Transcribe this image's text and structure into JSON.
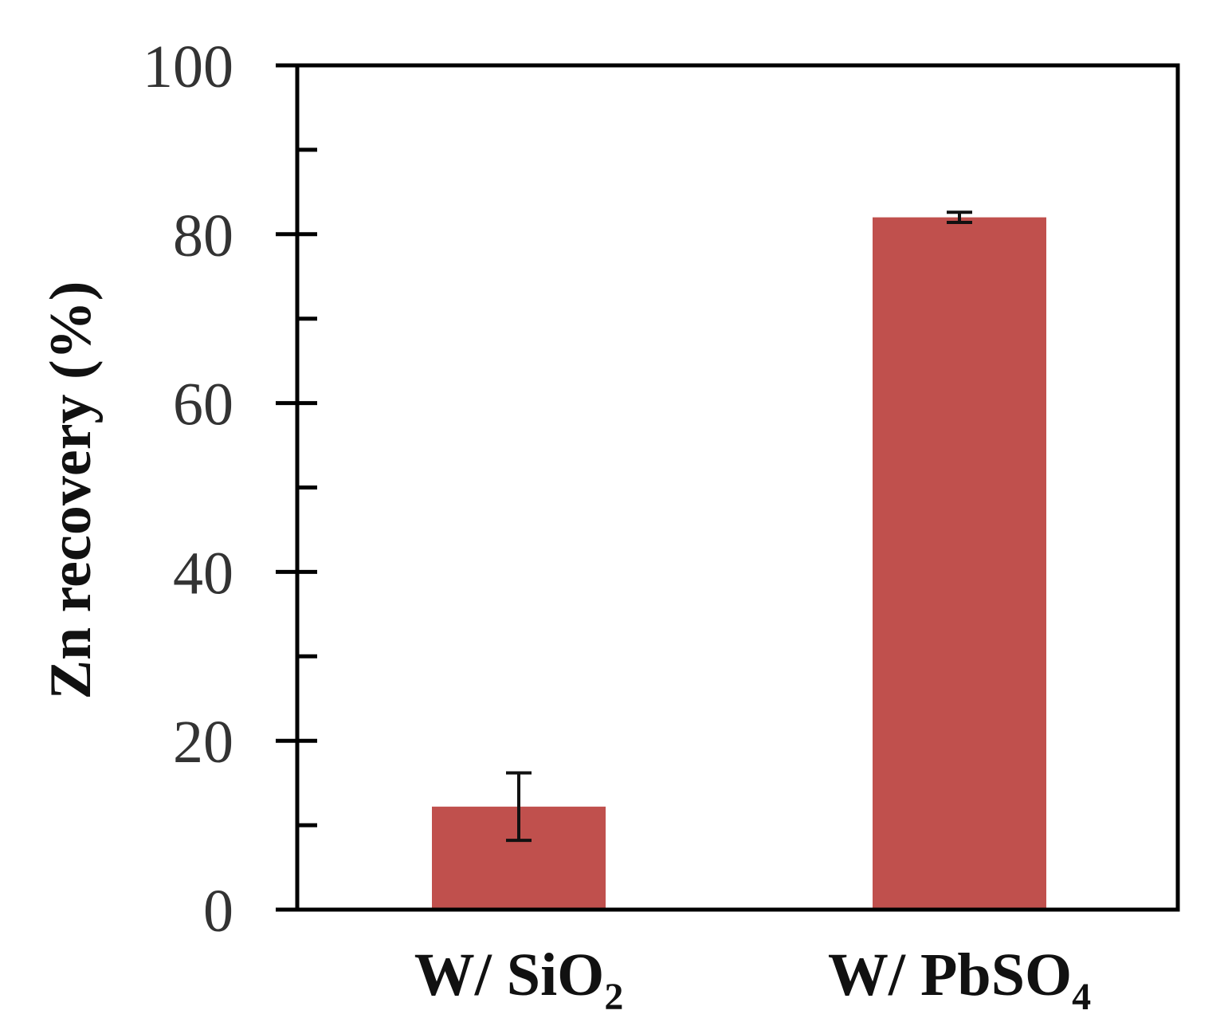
{
  "chart_data": {
    "type": "bar",
    "ylabel": "Zn recovery (%)",
    "ylim": [
      0,
      100
    ],
    "yticks_major": [
      0,
      20,
      40,
      60,
      80,
      100
    ],
    "yticks_minor": [
      10,
      30,
      50,
      70,
      90
    ],
    "grid": false,
    "categories": [
      {
        "main": "W/ SiO",
        "sub": "2"
      },
      {
        "main": "W/ PbSO",
        "sub": "4"
      }
    ],
    "values": [
      12.2,
      82.0
    ],
    "errors": [
      4.0,
      0.6
    ],
    "bar_color": "#c0504d",
    "error_color": "#111111",
    "axis_color": "#000000"
  }
}
